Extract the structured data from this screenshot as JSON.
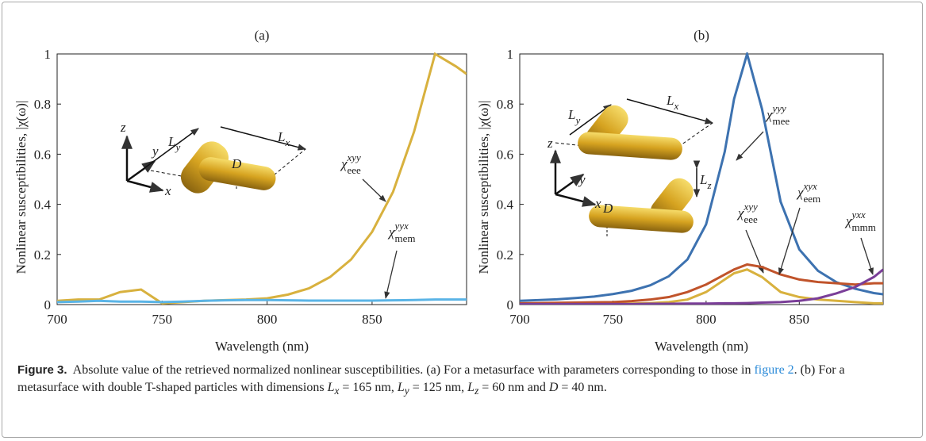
{
  "chart_data": [
    {
      "type": "line",
      "title": "(a)",
      "x_label": "Wavelength (nm)",
      "y_label": "Nonlinear susceptibilities, |χ(ω)|",
      "x": [
        700,
        710,
        720,
        730,
        740,
        750,
        760,
        770,
        780,
        790,
        800,
        810,
        820,
        830,
        840,
        850,
        860,
        870,
        880,
        890,
        895
      ],
      "series": [
        {
          "name": "χ",
          "sub": "eee",
          "sup": "xyy",
          "color": "#d8b13e",
          "values": [
            0.015,
            0.02,
            0.02,
            0.05,
            0.06,
            0.005,
            0.01,
            0.015,
            0.018,
            0.02,
            0.025,
            0.04,
            0.065,
            0.11,
            0.18,
            0.29,
            0.45,
            0.69,
            1.0,
            0.95,
            0.92
          ]
        },
        {
          "name": "χ",
          "sub": "mem",
          "sup": "yyx",
          "color": "#5ab4e6",
          "values": [
            0.01,
            0.012,
            0.015,
            0.012,
            0.012,
            0.01,
            0.012,
            0.015,
            0.017,
            0.018,
            0.018,
            0.017,
            0.016,
            0.016,
            0.016,
            0.016,
            0.017,
            0.018,
            0.02,
            0.02,
            0.02
          ]
        }
      ],
      "xlim": [
        700,
        895
      ],
      "xticks": [
        700,
        750,
        800,
        850
      ],
      "ylim": [
        0,
        1
      ],
      "yticks": [
        0,
        0.2,
        0.4,
        0.6,
        0.8,
        1
      ],
      "inset": [
        {
          "text": "z"
        },
        {
          "text": "y"
        },
        {
          "text": "x"
        },
        {
          "text": "L",
          "sub": "y"
        },
        {
          "text": "L",
          "sub": "x"
        },
        {
          "text": "D"
        }
      ]
    },
    {
      "type": "line",
      "title": "(b)",
      "x_label": "Wavelength (nm)",
      "y_label": "Nonlinear susceptibilities, |χ(ω)|",
      "x": [
        700,
        710,
        720,
        730,
        740,
        750,
        760,
        770,
        780,
        790,
        800,
        810,
        815,
        822,
        830,
        840,
        850,
        860,
        870,
        880,
        890,
        895
      ],
      "series": [
        {
          "name": "χ",
          "sub": "mee",
          "sup": "yyy",
          "color": "#3d72b0",
          "values": [
            0.015,
            0.018,
            0.021,
            0.026,
            0.032,
            0.042,
            0.055,
            0.077,
            0.113,
            0.18,
            0.32,
            0.61,
            0.82,
            1.0,
            0.78,
            0.41,
            0.22,
            0.135,
            0.089,
            0.063,
            0.046,
            0.041
          ]
        },
        {
          "name": "χ",
          "sub": "eee",
          "sup": "xyy",
          "color": "#d8b13e",
          "values": [
            0,
            0,
            0,
            0,
            0.002,
            0.003,
            0.004,
            0.006,
            0.01,
            0.02,
            0.05,
            0.1,
            0.125,
            0.14,
            0.11,
            0.05,
            0.03,
            0.02,
            0.015,
            0.01,
            0.005,
            0.005
          ]
        },
        {
          "name": "χ",
          "sub": "eem",
          "sup": "xyx",
          "color": "#c0532a",
          "values": [
            0.005,
            0.006,
            0.007,
            0.008,
            0.009,
            0.01,
            0.014,
            0.02,
            0.03,
            0.05,
            0.08,
            0.12,
            0.14,
            0.16,
            0.15,
            0.12,
            0.1,
            0.09,
            0.085,
            0.08,
            0.085,
            0.085
          ]
        },
        {
          "name": "χ",
          "sub": "mmm",
          "sup": "yxx",
          "color": "#7a3e98",
          "values": [
            0.002,
            0.002,
            0.002,
            0.002,
            0.002,
            0.002,
            0.002,
            0.003,
            0.003,
            0.004,
            0.004,
            0.005,
            0.005,
            0.006,
            0.008,
            0.01,
            0.015,
            0.025,
            0.045,
            0.07,
            0.11,
            0.14
          ]
        }
      ],
      "xlim": [
        700,
        895
      ],
      "xticks": [
        700,
        750,
        800,
        850
      ],
      "ylim": [
        0,
        1
      ],
      "yticks": [
        0,
        0.2,
        0.4,
        0.6,
        0.8,
        1
      ],
      "inset": [
        {
          "text": "z"
        },
        {
          "text": "y"
        },
        {
          "text": "x"
        },
        {
          "text": "L",
          "sub": "y"
        },
        {
          "text": "L",
          "sub": "x"
        },
        {
          "text": "D"
        },
        {
          "text": "L",
          "sub": "z"
        }
      ]
    }
  ],
  "caption": {
    "label": "Figure 3.",
    "text_1": "Absolute value of the retrieved normalized nonlinear susceptibilities. (a) For a metasurface with parameters corresponding to those in",
    "link": "figure 2",
    "text_2": ". (b) For a metasurface with double T-shaped particles with dimensions",
    "dims": [
      {
        "sym": "L",
        "sub": "x",
        "eq": "= 165 nm",
        "sep": ","
      },
      {
        "sym": "L",
        "sub": "y",
        "eq": "= 125 nm",
        "sep": ","
      },
      {
        "sym": "L",
        "sub": "z",
        "eq": "= 60 nm",
        "sep": "and"
      },
      {
        "sym": "D",
        "eq": "= 40 nm",
        "sep": "."
      }
    ]
  }
}
